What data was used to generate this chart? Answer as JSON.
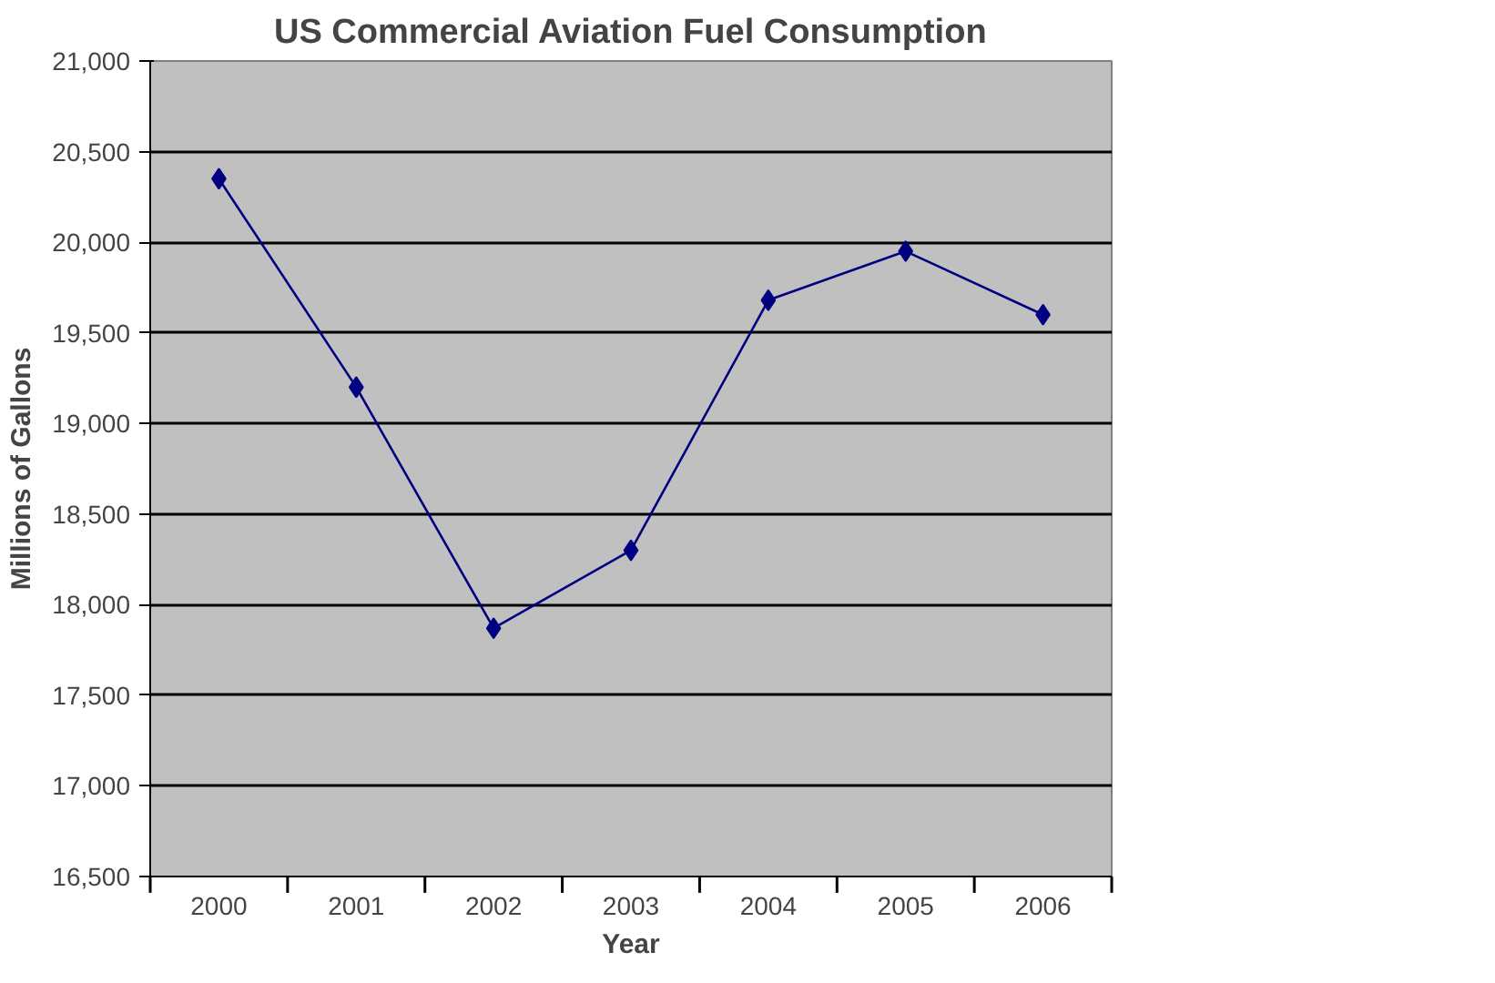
{
  "chart_data": {
    "type": "line",
    "title": "US Commercial Aviation Fuel Consumption",
    "xlabel": "Year",
    "ylabel": "Millions of Gallons",
    "categories": [
      "2000",
      "2001",
      "2002",
      "2003",
      "2004",
      "2005",
      "2006"
    ],
    "series": [
      {
        "color": "#000080",
        "values": [
          20350,
          19200,
          17870,
          18300,
          19680,
          19950,
          19600
        ]
      }
    ],
    "ylim": [
      16500,
      21000
    ],
    "yticks": [
      {
        "value": 16500,
        "label": "16,500"
      },
      {
        "value": 17000,
        "label": "17,000"
      },
      {
        "value": 17500,
        "label": "17,500"
      },
      {
        "value": 18000,
        "label": "18,000"
      },
      {
        "value": 18500,
        "label": "18,500"
      },
      {
        "value": 19000,
        "label": "19,000"
      },
      {
        "value": 19500,
        "label": "19,500"
      },
      {
        "value": 20000,
        "label": "20,000"
      },
      {
        "value": 20500,
        "label": "20,500"
      },
      {
        "value": 21000,
        "label": "21,000"
      }
    ],
    "grid": "y",
    "marker": "diamond",
    "line_style": "solid"
  }
}
